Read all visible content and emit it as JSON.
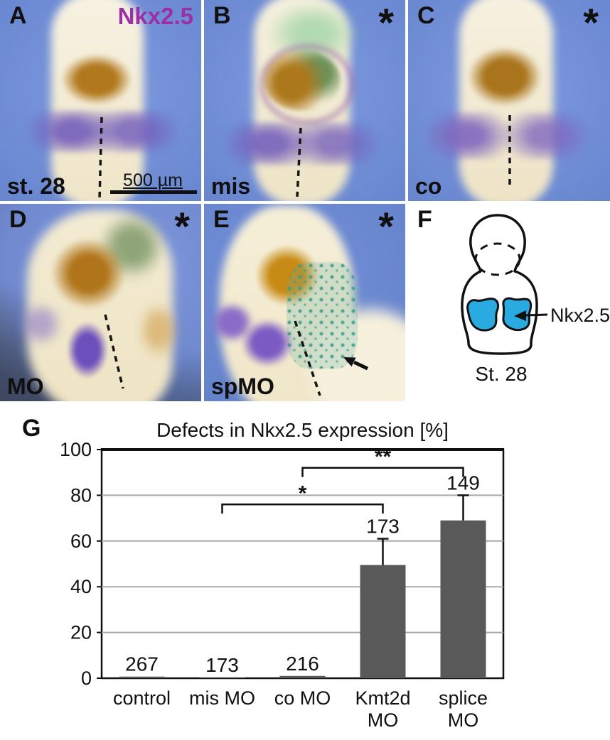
{
  "panels": {
    "a": {
      "letter": "A",
      "gene_label": "Nkx2.5",
      "stage_label": "st. 28",
      "scalebar_label": "500 µm"
    },
    "b": {
      "letter": "B",
      "asterisk": "*",
      "treatment_label": "mis"
    },
    "c": {
      "letter": "C",
      "asterisk": "*",
      "treatment_label": "co"
    },
    "d": {
      "letter": "D",
      "asterisk": "*",
      "treatment_label": "MO"
    },
    "e": {
      "letter": "E",
      "asterisk": "*",
      "treatment_label": "spMO"
    },
    "f": {
      "letter": "F",
      "annotation_label": "Nkx2.5",
      "stage_label": "St. 28"
    }
  },
  "chart": {
    "panel_letter": "G"
  },
  "colors": {
    "gene_label_purple": "#9b2fa5",
    "schematic_blue": "#29abe2",
    "bar_gray": "#595959",
    "grid_gray": "#a9a9a9",
    "background_blue": "#6b89d2"
  },
  "chart_data": {
    "type": "bar",
    "title": "Defects in Nkx2.5 expression [%]",
    "categories": [
      "control",
      "mis MO",
      "co MO",
      "Kmt2d MO",
      "splice MO"
    ],
    "x_tick_lines": [
      [
        "control"
      ],
      [
        "mis MO"
      ],
      [
        "co MO"
      ],
      [
        "Kmt2d",
        "MO"
      ],
      [
        "splice",
        "MO"
      ]
    ],
    "values": [
      0.7,
      0.3,
      1.0,
      49.5,
      69
    ],
    "error_up": [
      0,
      0,
      0,
      11.5,
      11
    ],
    "n_labels": [
      "267",
      "173",
      "216",
      "173",
      "149"
    ],
    "ylim": [
      0,
      100
    ],
    "yticks": [
      0,
      20,
      40,
      60,
      80,
      100
    ],
    "xlabel": "",
    "ylabel": "",
    "grid": true,
    "legend": false,
    "bar_color": "#595959",
    "grid_color": "#a9a9a9",
    "significance": [
      {
        "from_index": 1,
        "to_index": 3,
        "label": "*",
        "bracket_y": 76
      },
      {
        "from_index": 2,
        "to_index": 4,
        "label": "**",
        "bracket_y": 92
      }
    ]
  }
}
